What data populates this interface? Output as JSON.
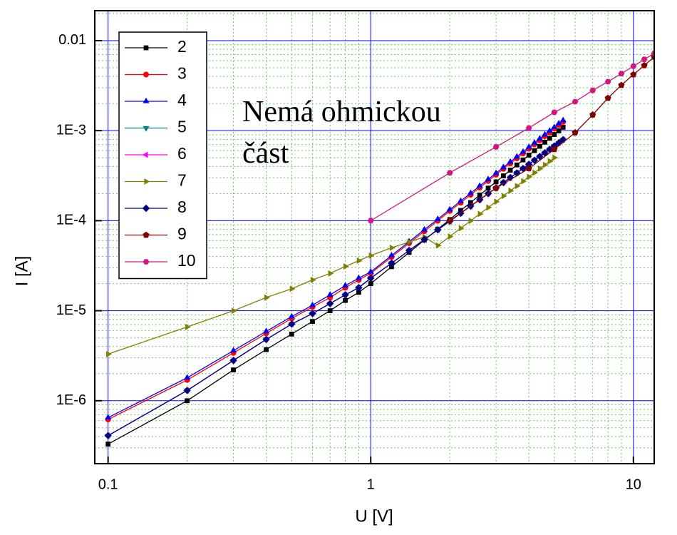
{
  "chart_data": {
    "type": "line",
    "log_x": true,
    "log_y": true,
    "xlabel": "U [V]",
    "ylabel": "I [A]",
    "annotations": [
      "Nemá ohmickou",
      "část"
    ],
    "xlim": [
      0.089,
      12
    ],
    "ylim": [
      2e-07,
      0.0215
    ],
    "xticks": [
      0.1,
      1,
      10
    ],
    "yticks": [
      {
        "value": 1e-06,
        "label": "1E-6"
      },
      {
        "value": 1e-05,
        "label": "1E-5"
      },
      {
        "value": 0.0001,
        "label": "1E-4"
      },
      {
        "value": 0.001,
        "label": "1E-3"
      },
      0.01
    ],
    "xminorticks": [
      0.2,
      0.3,
      0.4,
      0.5,
      0.6,
      0.7,
      0.8,
      0.9,
      2,
      3,
      4,
      5,
      6,
      7,
      8,
      9
    ],
    "yminorticks": [
      2e-07,
      3e-07,
      4e-07,
      5e-07,
      6e-07,
      7e-07,
      8e-07,
      9e-07,
      2e-06,
      3e-06,
      4e-06,
      5e-06,
      6e-06,
      7e-06,
      8e-06,
      9e-06,
      2e-05,
      3e-05,
      4e-05,
      5e-05,
      6e-05,
      7e-05,
      8e-05,
      9e-05,
      0.0002,
      0.0003,
      0.0004,
      0.0005,
      0.0006,
      0.0007,
      0.0008,
      0.0009,
      0.002,
      0.003,
      0.004,
      0.005,
      0.006,
      0.007,
      0.008,
      0.009,
      0.02
    ],
    "grid": true,
    "major_grid_color": "#0000ff",
    "minor_grid_color": "#66cc66",
    "legend": "upper left",
    "series": [
      {
        "name": "2",
        "color": "#000000",
        "marker": "square",
        "x": [
          0.1,
          0.2,
          0.3,
          0.4,
          0.5,
          0.6,
          0.7,
          0.8,
          0.9,
          1,
          1.2,
          1.4,
          1.6,
          1.8,
          2,
          2.2,
          2.4,
          2.6,
          2.8,
          3,
          3.2,
          3.4,
          3.6,
          3.8,
          4,
          4.2,
          4.4,
          4.6,
          4.8,
          5,
          5.2,
          5.4
        ],
        "values": [
          3.3e-07,
          1e-06,
          2.2e-06,
          3.7e-06,
          5.5e-06,
          7.6e-06,
          1e-05,
          1.3e-05,
          1.6e-05,
          2e-05,
          3.08e-05,
          4.44e-05,
          6.09e-05,
          8.05e-05,
          0.000103,
          0.00013,
          0.000159,
          0.000193,
          0.00023,
          0.00027,
          0.000315,
          0.000364,
          0.000416,
          0.000473,
          0.000535,
          0.0006,
          0.00067,
          0.000745,
          0.000823,
          0.000907,
          0.000995,
          0.00109
        ]
      },
      {
        "name": "3",
        "color": "#ff0000",
        "marker": "circle",
        "x": [
          0.1,
          0.2,
          0.3,
          0.4,
          0.5,
          0.6,
          0.7,
          0.8,
          0.9,
          1,
          1.2,
          1.4,
          1.6,
          1.8,
          2,
          2.2,
          2.4,
          2.6,
          2.8,
          3,
          3.2,
          3.4,
          3.6,
          3.8,
          4,
          4.2,
          4.4,
          4.6,
          4.8,
          5,
          5.2,
          5.4
        ],
        "values": [
          6.2e-07,
          1.7e-06,
          3.4e-06,
          5.6e-06,
          8.2e-06,
          1.1e-05,
          1.4e-05,
          1.8e-05,
          2.2e-05,
          2.6e-05,
          3.94e-05,
          5.62e-05,
          7.62e-05,
          9.98e-05,
          0.000128,
          0.000158,
          0.000194,
          0.000233,
          0.000276,
          0.000324,
          0.000376,
          0.000432,
          0.000492,
          0.000558,
          0.000629,
          0.000702,
          0.000782,
          0.000866,
          0.000955,
          0.00105,
          0.00115,
          0.00125
        ]
      },
      {
        "name": "4",
        "color": "#0000ff",
        "marker": "triangle-up",
        "x": [
          0.1,
          0.2,
          0.3,
          0.4,
          0.5,
          0.6,
          0.7,
          0.8,
          0.9,
          1,
          1.2,
          1.4,
          1.6,
          1.8,
          2,
          2.2,
          2.4,
          2.6,
          2.8,
          3,
          3.2,
          3.4,
          3.6,
          3.8,
          4,
          4.2,
          4.4,
          4.6,
          4.8,
          5,
          5.2,
          5.4
        ],
        "values": [
          6.5e-07,
          1.8e-06,
          3.6e-06,
          5.9e-06,
          8.6e-06,
          1.15e-05,
          1.5e-05,
          1.9e-05,
          2.3e-05,
          2.7e-05,
          4.1e-05,
          5.85e-05,
          7.94e-05,
          0.000104,
          0.000133,
          0.000165,
          0.000202,
          0.000243,
          0.000288,
          0.000337,
          0.000392,
          0.00045,
          0.000513,
          0.000581,
          0.000655,
          0.000731,
          0.000815,
          0.000902,
          0.000995,
          0.00109,
          0.0012,
          0.0013
        ]
      },
      {
        "name": "5",
        "color": "#008080",
        "marker": "triangle-down",
        "x": [
          0.1,
          0.2,
          0.3,
          0.4,
          0.5,
          0.6,
          0.7,
          0.8,
          0.9,
          1,
          1.2,
          1.4,
          1.6,
          1.8,
          2,
          2.2,
          2.4,
          2.6,
          2.8,
          3,
          3.2,
          3.4,
          3.6,
          3.8,
          4,
          4.2,
          4.4,
          4.6,
          4.8,
          5,
          5.2,
          5.4
        ],
        "values": [
          4.1e-07,
          1.3e-06,
          2.8e-06,
          4.8e-06,
          7.1e-06,
          9.3e-06,
          1.2e-05,
          1.5e-05,
          1.8e-05,
          2.3e-05,
          3.37e-05,
          4.67e-05,
          6.18e-05,
          7.91e-05,
          9.87e-05,
          0.000121,
          0.000145,
          0.000171,
          0.0002,
          0.000231,
          0.000265,
          0.000301,
          0.000339,
          0.00038,
          0.000423,
          0.000469,
          0.000517,
          0.000567,
          0.00062,
          0.000676,
          0.000733,
          0.000794
        ]
      },
      {
        "name": "6",
        "color": "#ff00ff",
        "marker": "triangle-left",
        "x": [
          0.1,
          0.2,
          0.3,
          0.4,
          0.5,
          0.6,
          0.7,
          0.8,
          0.9,
          1,
          1.2,
          1.4,
          1.6,
          1.8,
          2,
          2.2,
          2.4,
          2.6,
          2.8,
          3,
          3.2,
          3.4,
          3.6,
          3.8,
          4,
          4.2,
          4.4,
          4.6,
          4.8,
          5,
          5.2,
          5.4
        ],
        "values": [
          4.1e-07,
          1.3e-06,
          2.8e-06,
          4.8e-06,
          7.1e-06,
          9.3e-06,
          1.2e-05,
          1.5e-05,
          1.8e-05,
          2.3e-05,
          3.37e-05,
          4.67e-05,
          6.18e-05,
          7.91e-05,
          9.87e-05,
          0.000121,
          0.000145,
          0.000171,
          0.0002,
          0.000231,
          0.000265,
          0.000301,
          0.000339,
          0.00038,
          0.000423,
          0.000469,
          0.000517,
          0.000567,
          0.00062,
          0.000676,
          0.000733,
          0.000794
        ]
      },
      {
        "name": "7",
        "color": "#808000",
        "marker": "triangle-right",
        "x": [
          0.1,
          0.2,
          0.3,
          0.4,
          0.5,
          0.6,
          0.7,
          0.8,
          0.9,
          1,
          1.2,
          1.4,
          1.6,
          1.8,
          2,
          2.2,
          2.4,
          2.6,
          2.8,
          3,
          3.2,
          3.4,
          3.6,
          3.8,
          4,
          4.2,
          4.4,
          4.6,
          4.8,
          5
        ],
        "values": [
          3.3e-06,
          6.6e-06,
          1e-05,
          1.4e-05,
          1.75e-05,
          2.2e-05,
          2.6e-05,
          3.1e-05,
          3.6e-05,
          4.1e-05,
          5e-05,
          5.8e-05,
          6.6e-05,
          5.3e-05,
          6.68e-05,
          8.24e-05,
          9.97e-05,
          0.000119,
          0.00014,
          0.000163,
          0.000188,
          0.000215,
          0.000243,
          0.000274,
          0.000307,
          0.000341,
          0.000379,
          0.000417,
          0.000458,
          0.000501
        ]
      },
      {
        "name": "8",
        "color": "#000080",
        "marker": "diamond",
        "x": [
          0.1,
          0.2,
          0.3,
          0.4,
          0.5,
          0.6,
          0.7,
          0.8,
          0.9,
          1,
          1.2,
          1.4,
          1.6,
          1.8,
          2,
          2.2,
          2.4,
          2.6,
          2.8,
          3,
          3.2,
          3.4,
          3.6,
          3.8,
          4,
          4.2,
          4.4,
          4.6,
          4.8,
          5,
          5.2,
          5.4
        ],
        "values": [
          4.1e-07,
          1.3e-06,
          2.8e-06,
          4.8e-06,
          7.1e-06,
          9.3e-06,
          1.2e-05,
          1.5e-05,
          1.8e-05,
          2.3e-05,
          3.37e-05,
          4.67e-05,
          6.18e-05,
          7.91e-05,
          9.87e-05,
          0.000121,
          0.000145,
          0.000171,
          0.0002,
          0.000231,
          0.000265,
          0.000301,
          0.000339,
          0.00038,
          0.000423,
          0.000469,
          0.000517,
          0.000567,
          0.00062,
          0.000676,
          0.000733,
          0.000794
        ]
      },
      {
        "name": "9",
        "color": "#800000",
        "marker": "pentagon",
        "x": [
          2,
          3,
          4,
          5,
          6,
          7,
          8,
          9,
          10,
          11,
          12
        ],
        "values": [
          0.0001,
          0.00023,
          0.00038,
          0.00062,
          0.00095,
          0.0015,
          0.0023,
          0.0032,
          0.0042,
          0.0053,
          0.0066
        ]
      },
      {
        "name": "10",
        "color": "#d2177f",
        "marker": "hexagon",
        "x": [
          1,
          2,
          3,
          4,
          5,
          6,
          7,
          8,
          9,
          10,
          11,
          12
        ],
        "values": [
          0.0001,
          0.00034,
          0.00066,
          0.00107,
          0.0016,
          0.0021,
          0.0028,
          0.0035,
          0.0043,
          0.0052,
          0.0062,
          0.0072
        ]
      }
    ]
  }
}
